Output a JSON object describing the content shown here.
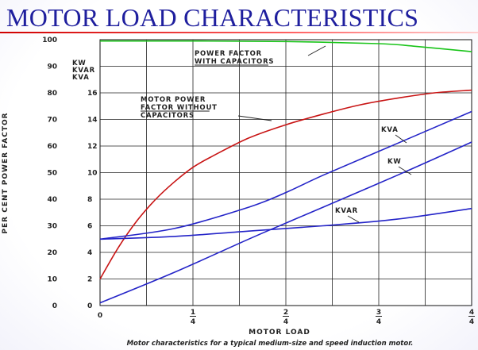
{
  "slide": {
    "title": "MOTOR LOAD CHARACTERISTICS"
  },
  "chart_data": {
    "type": "line",
    "title": "MOTOR LOAD CHARACTERISTICS",
    "xlabel": "MOTOR LOAD",
    "ylabel": "PER CENT POWER FACTOR",
    "caption": "Motor characteristics for a typical medium-size and speed induction motor.",
    "xlim": [
      0,
      1
    ],
    "ylim": [
      0,
      100
    ],
    "y2lim": [
      0,
      20
    ],
    "x_ticks": [
      {
        "value": 0,
        "label": "0"
      },
      {
        "value": 0.25,
        "num": "1",
        "den": "4"
      },
      {
        "value": 0.5,
        "num": "2",
        "den": "4"
      },
      {
        "value": 0.75,
        "num": "3",
        "den": "4"
      },
      {
        "value": 1.0,
        "num": "4",
        "den": "4"
      }
    ],
    "y_ticks": [
      "0",
      "10",
      "20",
      "30",
      "40",
      "50",
      "60",
      "70",
      "80",
      "90",
      "100"
    ],
    "y2_ticks": [
      "0",
      "2",
      "4",
      "6",
      "8",
      "10",
      "12",
      "14",
      "16"
    ],
    "y2_unit_labels": [
      "KW",
      "KVAR",
      "KVA"
    ],
    "grid": true,
    "series": [
      {
        "name": "POWER FACTOR WITH CAPACITORS",
        "axis": "left",
        "color": "#19c419",
        "x": [
          0,
          0.25,
          0.5,
          0.75,
          0.85,
          1.0
        ],
        "y": [
          99.5,
          99.5,
          99.3,
          98.5,
          97.5,
          95.5
        ]
      },
      {
        "name": "MOTOR POWER FACTOR WITHOUT CAPACITORS",
        "axis": "left",
        "color": "#c81414",
        "x": [
          0,
          0.05,
          0.1,
          0.15,
          0.2,
          0.25,
          0.3,
          0.4,
          0.5,
          0.6,
          0.7,
          0.8,
          0.9,
          1.0
        ],
        "y": [
          10,
          22,
          32,
          40,
          46.5,
          52,
          56,
          63,
          68,
          72,
          75.5,
          78,
          80,
          81
        ]
      },
      {
        "name": "KVA",
        "axis": "right",
        "color": "#2424c8",
        "x": [
          0,
          0.2,
          0.4,
          0.5,
          0.6,
          0.8,
          1.0
        ],
        "y": [
          5,
          5.8,
          7.4,
          8.5,
          9.8,
          12.2,
          14.6
        ]
      },
      {
        "name": "KW",
        "axis": "right",
        "color": "#2424c8",
        "x": [
          0,
          0.2,
          0.4,
          0.5,
          0.6,
          0.8,
          1.0
        ],
        "y": [
          0.2,
          2.5,
          5,
          6.2,
          7.4,
          9.8,
          12.3
        ]
      },
      {
        "name": "KVAR",
        "axis": "right",
        "color": "#2424c8",
        "x": [
          0,
          0.2,
          0.4,
          0.6,
          0.8,
          1.0
        ],
        "y": [
          5,
          5.2,
          5.6,
          6.0,
          6.5,
          7.3
        ]
      }
    ],
    "annotations": [
      {
        "series": "POWER FACTOR WITH CAPACITORS",
        "lines": [
          "POWER FACTOR",
          "WITH CAPACITORS"
        ]
      },
      {
        "series": "MOTOR POWER FACTOR WITHOUT CAPACITORS",
        "lines": [
          "MOTOR POWER",
          "FACTOR WITHOUT",
          "CAPACITORS"
        ]
      },
      {
        "series": "KVA",
        "lines": [
          "KVA"
        ]
      },
      {
        "series": "KW",
        "lines": [
          "KW"
        ]
      },
      {
        "series": "KVAR",
        "lines": [
          "KVAR"
        ]
      }
    ]
  }
}
